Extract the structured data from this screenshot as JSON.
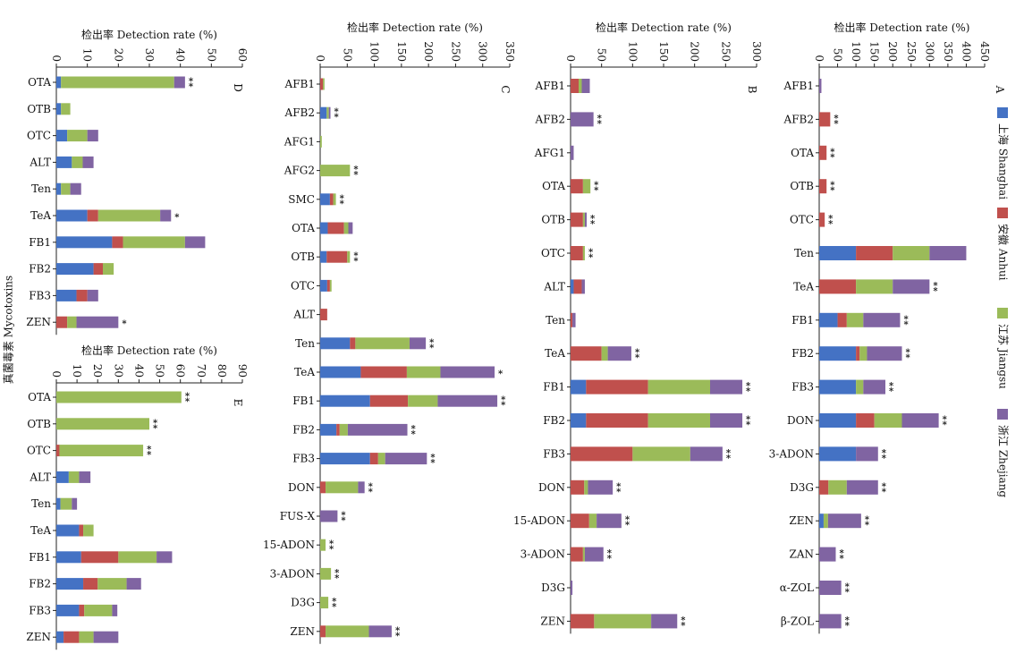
{
  "figure_ylabel": "真菌毒素 Mycotoxins",
  "legend": {
    "entries": [
      {
        "label": "上海 Shanghai",
        "color": "#4472C4"
      },
      {
        "label": "安徽 Anhui",
        "color": "#C0504D"
      },
      {
        "label": "江苏 Jiangsu",
        "color": "#9BBB59"
      },
      {
        "label": "浙江 Zhejiang",
        "color": "#8064A2"
      }
    ],
    "placement": "right, vertical"
  },
  "chart_data": [
    {
      "type": "bar",
      "stacked": true,
      "orientation": "horizontal",
      "panel_label": "D",
      "xlabel": "检出率 Detection rate (%)",
      "xlim": [
        0,
        60
      ],
      "xticks": [
        0,
        10,
        20,
        30,
        40,
        50,
        60
      ],
      "categories": [
        "OTA",
        "OTB",
        "OTC",
        "ALT",
        "Ten",
        "TeA",
        "FB1",
        "FB2",
        "FB3",
        "ZEN"
      ],
      "series": [
        {
          "name": "上海 Shanghai",
          "values": [
            1.5,
            1.5,
            3.5,
            5,
            1.5,
            10,
            18,
            12,
            6.5,
            0
          ]
        },
        {
          "name": "安徽 Anhui",
          "values": [
            0,
            0,
            0,
            0,
            0,
            3.5,
            3.5,
            3,
            3.5,
            3.5
          ]
        },
        {
          "name": "江苏 Jiangsu",
          "values": [
            36.5,
            3,
            6.5,
            3.5,
            3,
            20,
            20,
            3.5,
            0,
            3
          ]
        },
        {
          "name": "浙江 Zhejiang",
          "values": [
            3.5,
            0,
            3.5,
            3.5,
            3.5,
            3.5,
            6.5,
            0,
            3.5,
            13.5
          ]
        }
      ],
      "significance": [
        "**",
        "",
        "",
        "",
        "",
        "*",
        "",
        "",
        "",
        "*"
      ]
    },
    {
      "type": "bar",
      "stacked": true,
      "orientation": "horizontal",
      "panel_label": "E",
      "xlabel": "检出率 Detection rate (%)",
      "xlim": [
        0,
        90
      ],
      "xticks": [
        0,
        10,
        20,
        30,
        40,
        50,
        60,
        70,
        80,
        90
      ],
      "categories": [
        "OTA",
        "OTB",
        "OTC",
        "ALT",
        "Ten",
        "TeA",
        "FB1",
        "FB2",
        "FB3",
        "ZEN"
      ],
      "series": [
        {
          "name": "上海 Shanghai",
          "values": [
            0,
            0,
            0,
            6,
            2,
            11,
            12,
            13,
            11,
            3.5
          ]
        },
        {
          "name": "安徽 Anhui",
          "values": [
            0,
            0,
            1.5,
            0,
            0,
            2,
            18,
            7,
            2.5,
            7.5
          ]
        },
        {
          "name": "江苏 Jiangsu",
          "values": [
            60.5,
            45,
            40.5,
            5,
            5.5,
            5,
            18.5,
            14,
            13.5,
            7
          ]
        },
        {
          "name": "浙江 Zhejiang",
          "values": [
            0,
            0,
            0,
            5.5,
            2.5,
            0,
            7.5,
            7,
            2.5,
            12
          ]
        }
      ],
      "significance": [
        "**",
        "**",
        "**",
        "",
        "",
        "",
        "",
        "",
        "",
        ""
      ]
    },
    {
      "type": "bar",
      "stacked": true,
      "orientation": "horizontal",
      "panel_label": "C",
      "xlabel": "检出率 Detection rate (%)",
      "xlim": [
        0,
        350
      ],
      "xticks": [
        0,
        50,
        100,
        150,
        200,
        250,
        300,
        350
      ],
      "categories": [
        "AFB1",
        "AFB2",
        "AFG1",
        "AFG2",
        "SMC",
        "OTA",
        "OTB",
        "OTC",
        "ALT",
        "Ten",
        "TeA",
        "FB1",
        "FB2",
        "FB3",
        "DON",
        "FUS-X",
        "15-ADON",
        "3-ADON",
        "D3G",
        "ZEN"
      ],
      "series": [
        {
          "name": "上海 Shanghai",
          "values": [
            0,
            12,
            0,
            0,
            18,
            14,
            12,
            13,
            0,
            55,
            75,
            92,
            30,
            92,
            0,
            0,
            0,
            0,
            0,
            0
          ]
        },
        {
          "name": "安徽 Anhui",
          "values": [
            5,
            0,
            0,
            0,
            6,
            30,
            38,
            5,
            13,
            10,
            85,
            70,
            6,
            15,
            10,
            0,
            0,
            0,
            0,
            10
          ]
        },
        {
          "name": "江苏 Jiangsu",
          "values": [
            3,
            4,
            3,
            55,
            5,
            8,
            5,
            3,
            0,
            100,
            62,
            55,
            15,
            13,
            60,
            0,
            10,
            20,
            15,
            80
          ]
        },
        {
          "name": "浙江 Zhejiang",
          "values": [
            0,
            3,
            0,
            0,
            0,
            8,
            0,
            0,
            0,
            30,
            100,
            110,
            110,
            77,
            12,
            32,
            0,
            0,
            0,
            42
          ]
        }
      ],
      "significance": [
        "",
        "**",
        "",
        "**",
        "**",
        "",
        "**",
        "",
        "",
        "**",
        "*",
        "**",
        "**",
        "**",
        "**",
        "**",
        "**",
        "**",
        "**",
        "**"
      ]
    },
    {
      "type": "bar",
      "stacked": true,
      "orientation": "horizontal",
      "panel_label": "B",
      "xlabel": "检出率 Detection rate (%)",
      "xlim": [
        0,
        300
      ],
      "xticks": [
        0,
        50,
        100,
        150,
        200,
        250,
        300
      ],
      "categories": [
        "AFB1",
        "AFB2",
        "AFG1",
        "OTA",
        "OTB",
        "OTC",
        "ALT",
        "Ten",
        "TeA",
        "FB1",
        "FB2",
        "FB3",
        "DON",
        "15-ADON",
        "3-ADON",
        "D3G",
        "ZEN"
      ],
      "series": [
        {
          "name": "上海 Shanghai",
          "values": [
            0,
            0,
            0,
            0,
            0,
            0,
            5,
            0,
            0,
            25,
            25,
            0,
            0,
            0,
            0,
            0,
            0
          ]
        },
        {
          "name": "安徽 Anhui",
          "values": [
            13,
            0,
            0,
            20,
            20,
            20,
            13,
            3,
            50,
            100,
            100,
            100,
            22,
            30,
            20,
            0,
            38
          ]
        },
        {
          "name": "江苏 Jiangsu",
          "values": [
            5,
            0,
            0,
            12,
            3,
            3,
            0,
            0,
            10,
            100,
            100,
            93,
            6,
            12,
            3,
            0,
            92
          ]
        },
        {
          "name": "浙江 Zhejiang",
          "values": [
            13,
            37,
            5,
            0,
            3,
            0,
            5,
            5,
            38,
            52,
            52,
            52,
            40,
            40,
            30,
            3,
            42
          ]
        }
      ],
      "significance": [
        "",
        "**",
        "",
        "**",
        "**",
        "**",
        "",
        "",
        "**",
        "**",
        "**",
        "**",
        "**",
        "**",
        "**",
        "",
        "**"
      ]
    },
    {
      "type": "bar",
      "stacked": true,
      "orientation": "horizontal",
      "panel_label": "A",
      "xlabel": "检出率 Detection rate (%)",
      "xlim": [
        0,
        450
      ],
      "xticks": [
        0,
        50,
        100,
        150,
        200,
        250,
        300,
        350,
        400,
        450
      ],
      "categories": [
        "AFB1",
        "AFB2",
        "OTA",
        "OTB",
        "OTC",
        "Ten",
        "TeA",
        "FB1",
        "FB2",
        "FB3",
        "DON",
        "3-ADON",
        "D3G",
        "ZEN",
        "ZAN",
        "α-ZOL",
        "β-ZOL"
      ],
      "series": [
        {
          "name": "上海 Shanghai",
          "values": [
            0,
            0,
            0,
            0,
            0,
            100,
            0,
            50,
            100,
            100,
            100,
            100,
            0,
            12,
            0,
            0,
            0
          ]
        },
        {
          "name": "安徽 Anhui",
          "values": [
            0,
            30,
            20,
            20,
            15,
            100,
            100,
            25,
            10,
            0,
            50,
            0,
            25,
            0,
            0,
            0,
            0
          ]
        },
        {
          "name": "江苏 Jiangsu",
          "values": [
            0,
            0,
            0,
            0,
            0,
            100,
            100,
            45,
            20,
            20,
            75,
            0,
            50,
            12,
            0,
            0,
            0
          ]
        },
        {
          "name": "浙江 Zhejiang",
          "values": [
            6,
            0,
            0,
            0,
            0,
            100,
            100,
            100,
            95,
            60,
            100,
            60,
            85,
            90,
            45,
            60,
            60
          ]
        }
      ],
      "significance": [
        "",
        "**",
        "**",
        "**",
        "**",
        "",
        "**",
        "**",
        "**",
        "**",
        "**",
        "**",
        "**",
        "**",
        "**",
        "**",
        "**"
      ]
    }
  ]
}
